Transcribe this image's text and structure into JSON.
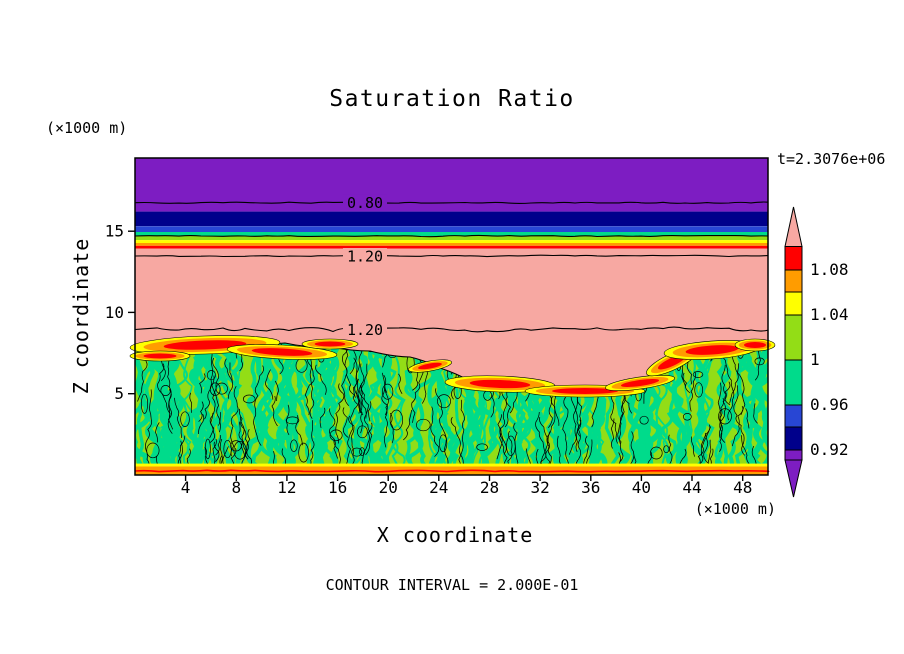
{
  "chart_data": {
    "type": "heatmap",
    "title": "Saturation Ratio",
    "time_label": "t=2.3076e+06",
    "xlabel": "X coordinate",
    "ylabel": "Z coordinate",
    "x_units_label": "(×1000 m)",
    "z_units_label": "(×1000 m)",
    "footer": "CONTOUR INTERVAL = 2.000E-01",
    "contour_interval": 0.2,
    "xlim": [
      0,
      50
    ],
    "zlim": [
      0,
      19.5
    ],
    "x_ticks": [
      4,
      8,
      12,
      16,
      20,
      24,
      28,
      32,
      36,
      40,
      44,
      48
    ],
    "z_ticks": [
      5,
      10,
      15
    ],
    "contour_lines": [
      {
        "label": "0.80",
        "z": 16.75,
        "amp": 1.2,
        "bg": "#7D1DC2"
      },
      {
        "label": "",
        "z": 14.7,
        "amp": 1.0,
        "bg": ""
      },
      {
        "label": "1.20",
        "z": 13.47,
        "amp": 1.2,
        "bg": "#F7A8A2"
      },
      {
        "label": "1.20",
        "z": 8.95,
        "amp": 4.0,
        "bg": "#F7A8A2"
      }
    ],
    "bands": [
      {
        "name": "purple",
        "color": "#7D1DC2",
        "z_from": 16.2,
        "z_to": 19.5,
        "layer": "main"
      },
      {
        "name": "navy",
        "color": "#00008B",
        "z_from": 15.3,
        "z_to": 16.2,
        "layer": "main"
      },
      {
        "name": "blue",
        "color": "#2846D4",
        "z_from": 14.95,
        "z_to": 15.3,
        "layer": "main"
      },
      {
        "name": "spring-green",
        "color": "#00DB8B",
        "z_from": 14.7,
        "z_to": 14.95,
        "layer": "main"
      },
      {
        "name": "chartreuse",
        "color": "#93DD16",
        "z_from": 14.45,
        "z_to": 14.7,
        "layer": "main"
      },
      {
        "name": "yellow",
        "color": "#FFFF00",
        "z_from": 14.27,
        "z_to": 14.45,
        "layer": "main"
      },
      {
        "name": "orange",
        "color": "#FF9C00",
        "z_from": 14.1,
        "z_to": 14.27,
        "layer": "main"
      },
      {
        "name": "red",
        "color": "#FF0000",
        "z_from": 13.93,
        "z_to": 14.1,
        "layer": "main"
      },
      {
        "name": "pink",
        "color": "#F7A8A2",
        "z_from": 4.5,
        "z_to": 13.93,
        "layer": "main"
      },
      {
        "name": "yellow-floor",
        "color": "#FFFF00",
        "z_from": 0.52,
        "z_to": 0.7,
        "layer": "floor"
      },
      {
        "name": "orange-floor",
        "color": "#FF9C00",
        "z_from": 0.0,
        "z_to": 0.52,
        "layer": "floor"
      }
    ],
    "turbulent_zone": {
      "base_color": "#93DD16",
      "accent_color": "#00DB8B",
      "hot_colors": [
        "#FFFF00",
        "#FF9C00",
        "#FF0000"
      ],
      "description": "mixed green/teal convective region below z≈9 with red supersaturation patches"
    },
    "colorbar": {
      "labels": [
        "1.08",
        "1.04",
        "1",
        "0.96",
        "0.92"
      ],
      "segment_colors": [
        "#F7A8A2",
        "#FF0000",
        "#FF9C00",
        "#FFFF00",
        "#93DD16",
        "#00DB8B",
        "#2846D4",
        "#00008B",
        "#7D1DC2"
      ]
    }
  }
}
